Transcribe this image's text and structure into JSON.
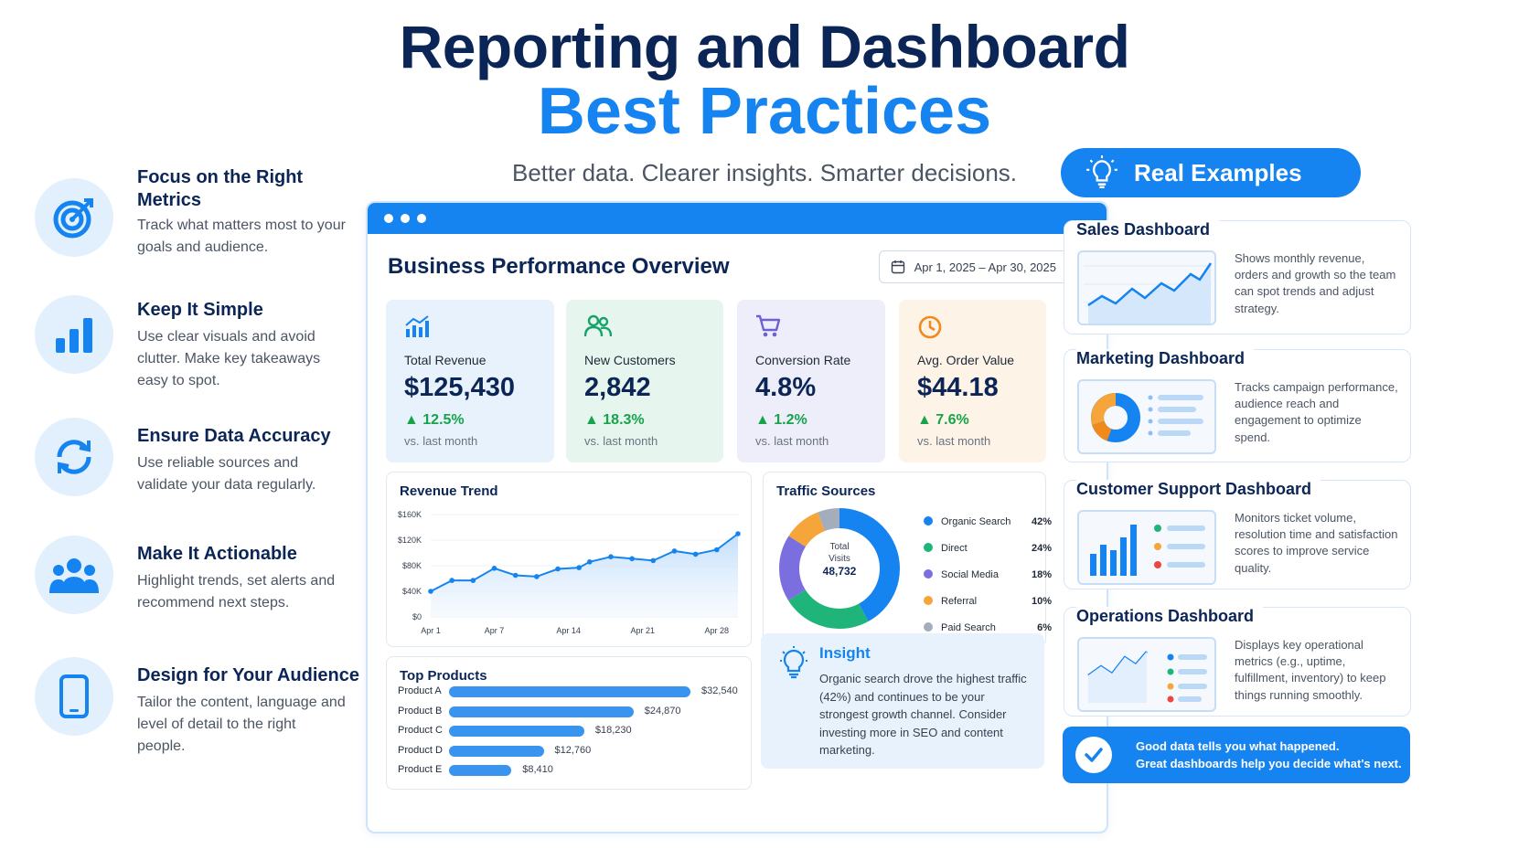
{
  "header": {
    "title_line1": "Reporting and Dashboard",
    "title_line2": "Best Practices",
    "subtitle": "Better data. Clearer insights. Smarter decisions."
  },
  "tips": [
    {
      "title": "Focus on the Right Metrics",
      "desc": "Track what matters most to your goals and audience.",
      "icon": "target-icon"
    },
    {
      "title": "Keep It Simple",
      "desc": "Use clear visuals and avoid clutter. Make key takeaways easy to spot.",
      "icon": "bar-chart-icon"
    },
    {
      "title": "Ensure Data Accuracy",
      "desc": "Use reliable sources and validate your data regularly.",
      "icon": "refresh-icon"
    },
    {
      "title": "Make It Actionable",
      "desc": "Highlight trends, set alerts and recommend next steps.",
      "icon": "people-icon"
    },
    {
      "title": "Design for Your Audience",
      "desc": "Tailor the content, language and level of detail to the right people.",
      "icon": "phone-icon"
    }
  ],
  "dashboard": {
    "title": "Business Performance Overview",
    "date_range": "Apr 1, 2025 – Apr 30, 2025",
    "kpis": [
      {
        "label": "Total Revenue",
        "value": "$125,430",
        "change": "▲ 12.5%",
        "vs": "vs. last month",
        "icon": "trend-chart-icon",
        "bg": "#e8f2fc",
        "color": "#1583f0"
      },
      {
        "label": "New Customers",
        "value": "2,842",
        "change": "▲ 18.3%",
        "vs": "vs. last month",
        "icon": "users-icon",
        "bg": "#e6f6ef",
        "color": "#16a36a"
      },
      {
        "label": "Conversion Rate",
        "value": "4.8%",
        "change": "▲ 1.2%",
        "vs": "vs. last month",
        "icon": "cart-icon",
        "bg": "#eeeefa",
        "color": "#6d5fd6"
      },
      {
        "label": "Avg. Order Value",
        "value": "$44.18",
        "change": "▲ 7.6%",
        "vs": "vs. last month",
        "icon": "clock-icon",
        "bg": "#fdf3e7",
        "color": "#f08a1c"
      }
    ],
    "revenue_trend": {
      "title": "Revenue Trend"
    },
    "traffic": {
      "title": "Traffic Sources",
      "center_label_1": "Total",
      "center_label_2": "Visits",
      "center_value": "48,732"
    },
    "top_products": {
      "title": "Top Products"
    },
    "insight": {
      "title": "Insight",
      "body": "Organic search drove the highest traffic (42%) and continues to be your strongest growth channel. Consider investing more in SEO and content marketing."
    }
  },
  "chart_data": [
    {
      "type": "area",
      "title": "Revenue Trend",
      "x_ticks": [
        "Apr 1",
        "Apr 7",
        "Apr 14",
        "Apr 21",
        "Apr 28"
      ],
      "y_ticks": [
        "$0",
        "$40K",
        "$80K",
        "$120K",
        "$160K"
      ],
      "ylim": [
        0,
        160000
      ],
      "x": [
        1,
        3,
        5,
        7,
        9,
        11,
        13,
        15,
        16,
        18,
        20,
        22,
        24,
        26,
        28,
        30
      ],
      "values": [
        40000,
        57000,
        57000,
        76000,
        65000,
        63000,
        75000,
        77000,
        86000,
        94000,
        91000,
        88000,
        103000,
        98000,
        105000,
        130000
      ]
    },
    {
      "type": "pie",
      "title": "Traffic Sources",
      "labels": [
        "Organic Search",
        "Direct",
        "Social Media",
        "Referral",
        "Paid Search"
      ],
      "values": [
        42,
        24,
        18,
        10,
        6
      ],
      "value_labels": [
        "42%",
        "24%",
        "18%",
        "10%",
        "6%"
      ],
      "colors": [
        "#1583f0",
        "#1fb57a",
        "#7b6fe0",
        "#f6a53a",
        "#a3adbb"
      ]
    },
    {
      "type": "bar",
      "title": "Top Products",
      "categories": [
        "Product A",
        "Product B",
        "Product C",
        "Product D",
        "Product E"
      ],
      "values": [
        32540,
        24870,
        18230,
        12760,
        8410
      ],
      "value_labels": [
        "$32,540",
        "$24,870",
        "$18,230",
        "$12,760",
        "$8,410"
      ]
    }
  ],
  "real_examples": {
    "title": "Real Examples",
    "cards": [
      {
        "title": "Sales Dashboard",
        "desc": "Shows monthly revenue, orders and growth so the team can spot trends and adjust strategy."
      },
      {
        "title": "Marketing Dashboard",
        "desc": "Tracks campaign performance, audience reach and engagement to optimize spend."
      },
      {
        "title": "Customer Support Dashboard",
        "desc": "Monitors ticket volume, resolution time and satisfaction scores to improve service quality."
      },
      {
        "title": "Operations Dashboard",
        "desc": "Displays key operational metrics (e.g., uptime, fulfillment, inventory) to keep things running smoothly."
      }
    ]
  },
  "footer": {
    "line1": "Good data tells you what happened.",
    "line2": "Great dashboards help you decide what's next."
  }
}
